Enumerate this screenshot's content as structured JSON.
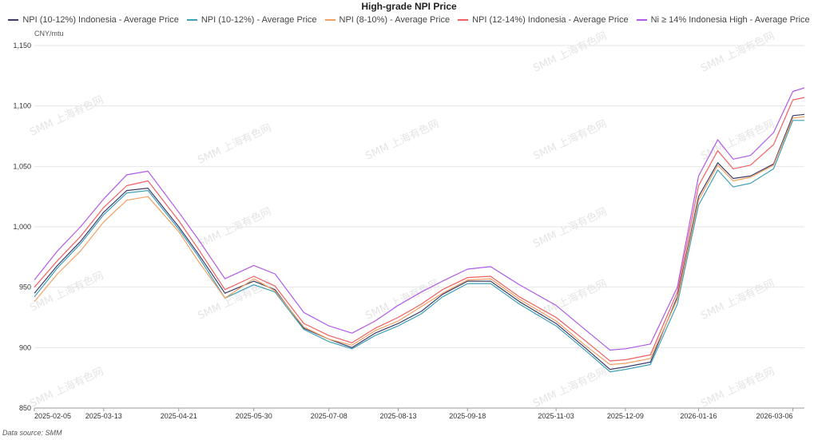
{
  "chart_data": {
    "type": "line",
    "title": "High-grade NPI Price",
    "unit": "CNY/mtu",
    "source": "Data source: SMM",
    "watermark": "SMM 上海有色网",
    "ylim": [
      850,
      1150
    ],
    "yticks": [
      850,
      900,
      950,
      1000,
      1050,
      1100,
      1150
    ],
    "y_tick_labels": [
      "850",
      "900",
      "950",
      "1,000",
      "1,050",
      "1,100",
      "1,150"
    ],
    "grid": true,
    "legend_position": "top",
    "x_tick_labels": [
      "2025-02-05",
      "2025-03-13",
      "2025-04-21",
      "2025-05-30",
      "2025-07-08",
      "2025-08-13",
      "2025-09-18",
      "2025-11-03",
      "2025-12-09",
      "2026-01-16",
      "2026-03-06"
    ],
    "x": [
      "2025-02-05",
      "2025-02-17",
      "2025-03-01",
      "2025-03-13",
      "2025-03-25",
      "2025-04-05",
      "2025-04-21",
      "2025-05-01",
      "2025-05-15",
      "2025-05-30",
      "2025-06-10",
      "2025-06-25",
      "2025-07-08",
      "2025-07-20",
      "2025-08-01",
      "2025-08-13",
      "2025-08-25",
      "2025-09-05",
      "2025-09-18",
      "2025-09-30",
      "2025-10-15",
      "2025-11-03",
      "2025-11-18",
      "2025-12-01",
      "2025-12-09",
      "2025-12-22",
      "2026-01-05",
      "2026-01-16",
      "2026-01-26",
      "2026-02-03",
      "2026-02-12",
      "2026-02-24",
      "2026-03-06",
      "2026-03-12"
    ],
    "series": [
      {
        "name": "NPI (10-12%) Indonesia - Average Price",
        "color": "#3d3d6b",
        "values": [
          945,
          968,
          988,
          1012,
          1030,
          1032,
          1000,
          978,
          945,
          955,
          948,
          916,
          907,
          900,
          912,
          920,
          930,
          944,
          955,
          955,
          938,
          920,
          900,
          882,
          884,
          888,
          942,
          1025,
          1053,
          1040,
          1042,
          1052,
          1092,
          1093
        ]
      },
      {
        "name": "NPI (10-12%) - Average Price",
        "color": "#3fa0b5",
        "values": [
          942,
          966,
          986,
          1010,
          1028,
          1030,
          998,
          976,
          941,
          952,
          946,
          915,
          905,
          899,
          910,
          918,
          928,
          942,
          953,
          953,
          936,
          918,
          898,
          880,
          882,
          886,
          936,
          1018,
          1047,
          1033,
          1036,
          1048,
          1088,
          1088
        ]
      },
      {
        "name": "NPI (8-10%) - Average Price",
        "color": "#f0a060",
        "values": [
          938,
          961,
          980,
          1004,
          1022,
          1025,
          996,
          972,
          941,
          957,
          947,
          917,
          907,
          902,
          914,
          922,
          934,
          945,
          956,
          957,
          940,
          922,
          902,
          886,
          887,
          891,
          940,
          1022,
          1051,
          1038,
          1041,
          1051,
          1090,
          1091
        ]
      },
      {
        "name": "NPI (12-14%) Indonesia - Average Price",
        "color": "#f06060",
        "values": [
          950,
          972,
          992,
          1016,
          1034,
          1038,
          1005,
          982,
          948,
          959,
          951,
          920,
          910,
          904,
          916,
          925,
          936,
          948,
          958,
          959,
          942,
          925,
          906,
          889,
          890,
          894,
          946,
          1034,
          1063,
          1048,
          1051,
          1068,
          1105,
          1107
        ]
      },
      {
        "name": "Ni ≥ 14% Indonesia High - Average Price",
        "color": "#b05ae8",
        "values": [
          956,
          980,
          1000,
          1023,
          1043,
          1046,
          1012,
          990,
          957,
          968,
          961,
          929,
          918,
          912,
          922,
          935,
          946,
          955,
          965,
          967,
          952,
          935,
          915,
          898,
          899,
          903,
          950,
          1042,
          1072,
          1056,
          1059,
          1078,
          1112,
          1115
        ]
      }
    ]
  }
}
